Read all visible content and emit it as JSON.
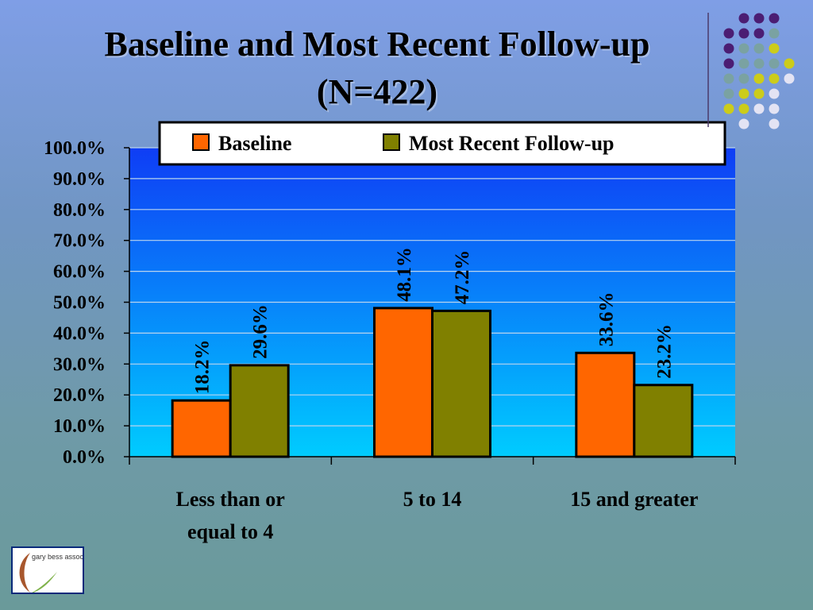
{
  "colors": {
    "baseline": "#ff6600",
    "followup": "#808000",
    "plot_top": "#0f3df5",
    "plot_bottom": "#00ccff",
    "dot_purple": "#4b1d73",
    "dot_teal": "#7aa2a2",
    "dot_yellow": "#cccc1a",
    "dot_lavender": "#e3e3f3"
  },
  "logo": {
    "text": "gary bess associates"
  },
  "chart_data": {
    "type": "bar",
    "title": "Baseline and Most Recent Follow-up (N=422)",
    "categories": [
      [
        "Less than or",
        "equal to 4"
      ],
      [
        "5 to 14"
      ],
      [
        "15 and greater"
      ]
    ],
    "series": [
      {
        "name": "Baseline",
        "values": [
          18.2,
          48.1,
          33.6
        ],
        "labels": [
          "18.2%",
          "48.1%",
          "33.6%"
        ]
      },
      {
        "name": "Most Recent Follow-up",
        "values": [
          29.6,
          47.2,
          23.2
        ],
        "labels": [
          "29.6%",
          "47.2%",
          "23.2%"
        ]
      }
    ],
    "ylim": [
      0,
      100
    ],
    "yticks": [
      "0.0%",
      "10.0%",
      "20.0%",
      "30.0%",
      "40.0%",
      "50.0%",
      "60.0%",
      "70.0%",
      "80.0%",
      "90.0%",
      "100.0%"
    ],
    "grid": true,
    "legend_position": "top"
  }
}
